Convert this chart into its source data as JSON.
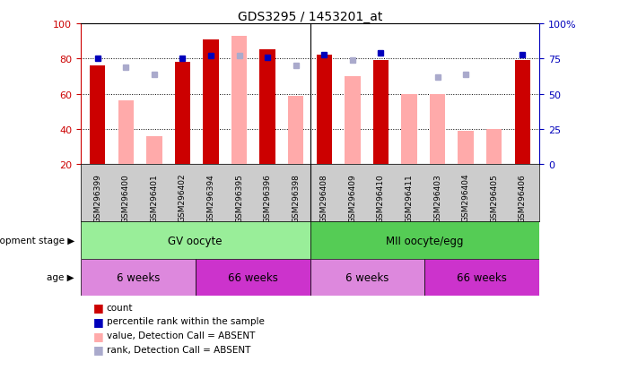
{
  "title": "GDS3295 / 1453201_at",
  "samples": [
    "GSM296399",
    "GSM296400",
    "GSM296401",
    "GSM296402",
    "GSM296394",
    "GSM296395",
    "GSM296396",
    "GSM296398",
    "GSM296408",
    "GSM296409",
    "GSM296410",
    "GSM296411",
    "GSM296403",
    "GSM296404",
    "GSM296405",
    "GSM296406"
  ],
  "count": [
    76,
    null,
    null,
    78,
    91,
    null,
    85,
    null,
    82,
    null,
    79,
    null,
    null,
    null,
    null,
    79
  ],
  "count_absent": [
    null,
    56,
    36,
    null,
    null,
    93,
    null,
    59,
    null,
    70,
    null,
    60,
    60,
    39,
    40,
    null
  ],
  "rank": [
    75,
    null,
    null,
    75,
    77,
    null,
    76,
    null,
    78,
    null,
    79,
    null,
    null,
    null,
    null,
    78
  ],
  "rank_absent": [
    null,
    69,
    64,
    null,
    null,
    77,
    null,
    70,
    null,
    74,
    null,
    null,
    62,
    64,
    null,
    null
  ],
  "ylim_left": [
    20,
    100
  ],
  "ylim_right": [
    0,
    100
  ],
  "yticks_left": [
    20,
    40,
    60,
    80,
    100
  ],
  "yticks_right": [
    0,
    25,
    50,
    75,
    100
  ],
  "ytick_labels_right": [
    "0",
    "25",
    "50",
    "75",
    "100%"
  ],
  "color_count": "#cc0000",
  "color_rank": "#0000bb",
  "color_count_absent": "#ffaaaa",
  "color_rank_absent": "#aaaacc",
  "bar_width": 0.55,
  "group1_label": "GV oocyte",
  "group2_label": "MII oocyte/egg",
  "group1_color": "#99ee99",
  "group2_color": "#55cc55",
  "age_color_light": "#dd88dd",
  "age_color_dark": "#cc33cc",
  "legend_items": [
    {
      "label": "count",
      "color": "#cc0000"
    },
    {
      "label": "percentile rank within the sample",
      "color": "#0000bb"
    },
    {
      "label": "value, Detection Call = ABSENT",
      "color": "#ffaaaa"
    },
    {
      "label": "rank, Detection Call = ABSENT",
      "color": "#aaaacc"
    }
  ]
}
